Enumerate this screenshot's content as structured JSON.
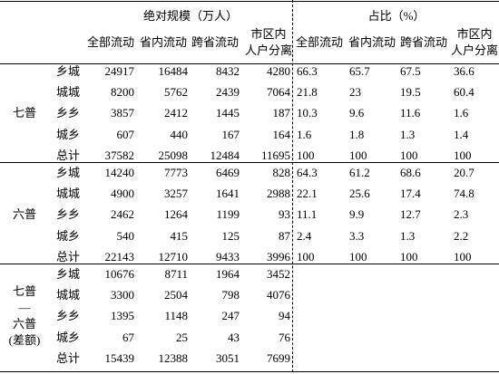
{
  "header": {
    "groups": [
      "绝对规模（万人）",
      "占比（%）"
    ],
    "columns": [
      "全部流动",
      "省内流动",
      "跨省流动",
      [
        "市区内",
        "人户分离"
      ]
    ]
  },
  "sections": [
    {
      "label": [
        "七普"
      ],
      "rows": [
        {
          "label": "乡城",
          "abs": [
            24917,
            16484,
            8432,
            4280
          ],
          "pct": [
            66.3,
            65.7,
            67.5,
            36.6
          ]
        },
        {
          "label": "城城",
          "abs": [
            8200,
            5762,
            2439,
            7064
          ],
          "pct": [
            21.8,
            23.0,
            19.5,
            60.4
          ]
        },
        {
          "label": "乡乡",
          "abs": [
            3857,
            2412,
            1445,
            187
          ],
          "pct": [
            10.3,
            9.6,
            11.6,
            1.6
          ]
        },
        {
          "label": "城乡",
          "abs": [
            607,
            440,
            167,
            164
          ],
          "pct": [
            1.6,
            1.8,
            1.3,
            1.4
          ]
        },
        {
          "label": "总计",
          "abs": [
            37582,
            25098,
            12484,
            11695
          ],
          "pct": [
            100,
            100,
            100,
            100
          ]
        }
      ]
    },
    {
      "label": [
        "六普"
      ],
      "rows": [
        {
          "label": "乡城",
          "abs": [
            14240,
            7773,
            6469,
            828
          ],
          "pct": [
            64.3,
            61.2,
            68.6,
            20.7
          ]
        },
        {
          "label": "城城",
          "abs": [
            4900,
            3257,
            1641,
            2988
          ],
          "pct": [
            22.1,
            25.6,
            17.4,
            74.8
          ]
        },
        {
          "label": "乡乡",
          "abs": [
            2462,
            1264,
            1199,
            93
          ],
          "pct": [
            11.1,
            9.9,
            12.7,
            2.3
          ]
        },
        {
          "label": "城乡",
          "abs": [
            540,
            415,
            125,
            87
          ],
          "pct": [
            2.4,
            3.3,
            1.3,
            2.2
          ]
        },
        {
          "label": "总计",
          "abs": [
            22143,
            12710,
            9433,
            3996
          ],
          "pct": [
            100,
            100,
            100,
            100
          ]
        }
      ]
    },
    {
      "label": [
        "七普",
        "—",
        "六普",
        "(差额)"
      ],
      "rows": [
        {
          "label": "乡城",
          "abs": [
            10676,
            8711,
            1964,
            3452
          ]
        },
        {
          "label": "城城",
          "abs": [
            3300,
            2504,
            798,
            4076
          ]
        },
        {
          "label": "乡乡",
          "abs": [
            1395,
            1148,
            247,
            94
          ]
        },
        {
          "label": "城乡",
          "abs": [
            67,
            25,
            43,
            76
          ]
        },
        {
          "label": "总计",
          "abs": [
            15439,
            12388,
            3051,
            7699
          ]
        }
      ]
    }
  ]
}
